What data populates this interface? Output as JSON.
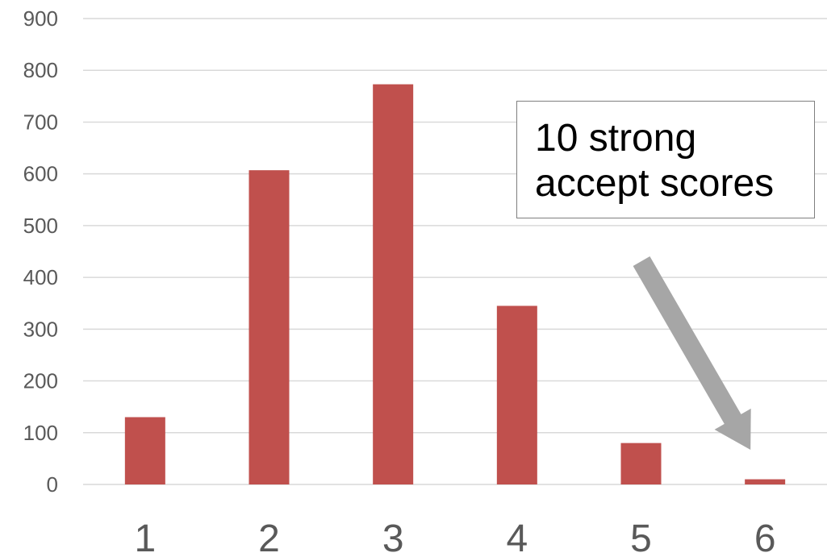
{
  "chart_data": {
    "type": "bar",
    "title": "",
    "xlabel": "",
    "ylabel": "",
    "categories": [
      "1",
      "2",
      "3",
      "4",
      "5",
      "6"
    ],
    "values": [
      130,
      607,
      773,
      345,
      80,
      10
    ],
    "ylim": [
      0,
      900
    ],
    "yticks": [
      "0",
      "100",
      "200",
      "300",
      "400",
      "500",
      "600",
      "700",
      "800",
      "900"
    ],
    "grid": true,
    "legend": "none",
    "bar_color": "#c0504d",
    "gridline_color": "#d9d9d9",
    "arrow_color": "#a6a6a6",
    "annotation": {
      "lines": [
        "10 strong",
        "accept scores"
      ],
      "points_to_category": "6"
    }
  }
}
